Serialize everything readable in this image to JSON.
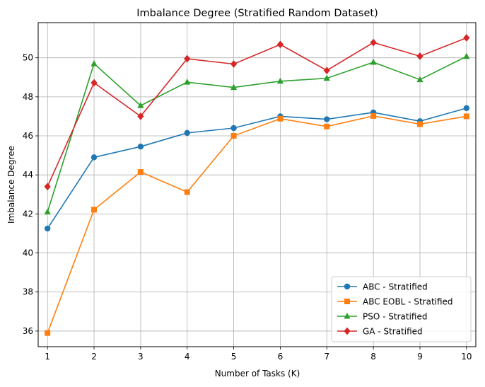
{
  "chart_data": {
    "type": "line",
    "title": "Imbalance Degree (Stratified Random Dataset)",
    "xlabel": "Number of Tasks (K)",
    "ylabel": "Imbalance Degree",
    "x": [
      1,
      2,
      3,
      4,
      5,
      6,
      7,
      8,
      9,
      10
    ],
    "xlim": [
      0.8,
      10.2
    ],
    "ylim": [
      35.2,
      51.8
    ],
    "yticks": [
      36,
      38,
      40,
      42,
      44,
      46,
      48,
      50
    ],
    "grid": true,
    "legend_position": "lower-right",
    "series": [
      {
        "name": "ABC - Stratified",
        "color": "#1f77b4",
        "marker": "circle",
        "values": [
          41.25,
          44.9,
          45.45,
          46.15,
          46.4,
          47.0,
          46.85,
          47.2,
          46.75,
          47.42
        ]
      },
      {
        "name": "ABC EOBL - Stratified",
        "color": "#ff7f0e",
        "marker": "square",
        "values": [
          35.9,
          42.22,
          44.15,
          43.12,
          46.0,
          46.88,
          46.48,
          47.02,
          46.6,
          47.0
        ]
      },
      {
        "name": "PSO - Stratified",
        "color": "#2ca02c",
        "marker": "triangle",
        "values": [
          42.1,
          49.7,
          47.55,
          48.75,
          48.48,
          48.8,
          48.95,
          49.77,
          48.88,
          50.07
        ]
      },
      {
        "name": "GA - Stratified",
        "color": "#d62728",
        "marker": "diamond",
        "values": [
          43.4,
          48.72,
          47.0,
          49.95,
          49.68,
          50.68,
          49.35,
          50.78,
          50.08,
          51.02
        ]
      }
    ]
  }
}
